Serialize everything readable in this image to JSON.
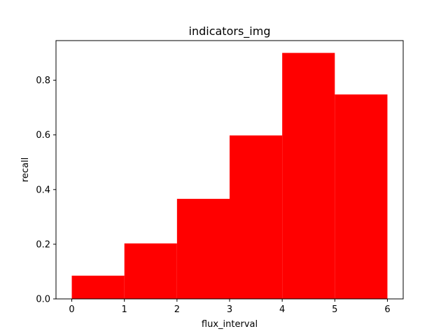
{
  "chart_data": {
    "type": "bar",
    "title": "indicators_img",
    "xlabel": "flux_interval",
    "ylabel": "recall",
    "bin_edges": [
      0,
      1,
      2,
      3,
      4,
      5,
      6
    ],
    "values": [
      0.085,
      0.203,
      0.366,
      0.598,
      0.9,
      0.748
    ],
    "xlim": [
      -0.3,
      6.3
    ],
    "ylim": [
      0,
      0.945
    ],
    "xticks": [
      0,
      1,
      2,
      3,
      4,
      5,
      6
    ],
    "yticks": [
      0.0,
      0.2,
      0.4,
      0.6,
      0.8
    ],
    "ytick_labels": [
      "0.0",
      "0.2",
      "0.4",
      "0.6",
      "0.8"
    ],
    "bar_color": "#ff0000",
    "grid": false,
    "legend": "none"
  }
}
